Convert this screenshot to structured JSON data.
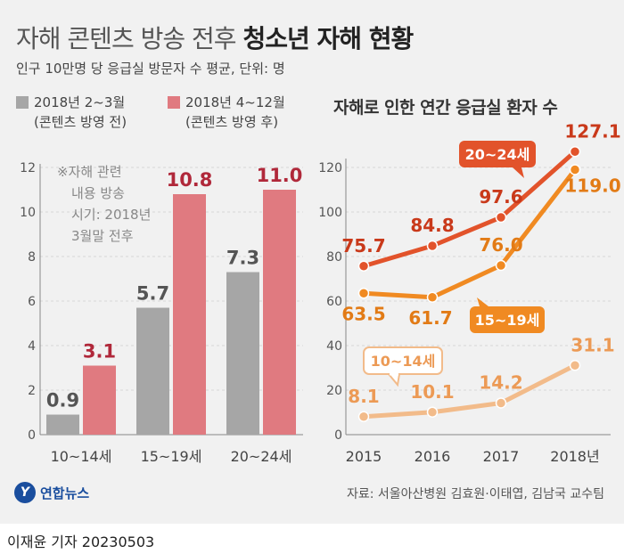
{
  "title": {
    "light": "자해 콘텐츠 방송 전후",
    "bold": "청소년 자해 현황"
  },
  "subtitle": "인구 10만명 당 응급실 방문자 수 평균, 단위: 명",
  "legend": [
    {
      "line1": "2018년 2~3월",
      "line2": "(콘텐츠 방영 전)",
      "color": "#a6a6a6"
    },
    {
      "line1": "2018년 4~12월",
      "line2": "(콘텐츠 방영 후)",
      "color": "#e07a80"
    }
  ],
  "note": [
    "※자해 관련",
    "내용 방송",
    "시기: 2018년",
    "3월말 전후"
  ],
  "right_title": "자해로 인한 연간 응급실 환자 수",
  "chart_data": [
    {
      "type": "bar",
      "categories": [
        "10~14세",
        "15~19세",
        "20~24세"
      ],
      "series": [
        {
          "name": "2018년 2~3월 (콘텐츠 방영 전)",
          "values": [
            0.9,
            5.7,
            7.3
          ],
          "color": "#a6a6a6",
          "label_color": "#555555"
        },
        {
          "name": "2018년 4~12월 (콘텐츠 방영 후)",
          "values": [
            3.1,
            10.8,
            11.0
          ],
          "color": "#e07a80",
          "label_color": "#b0283a"
        }
      ],
      "ylim": [
        0,
        12
      ],
      "yticks": [
        0,
        2,
        4,
        6,
        8,
        10,
        12
      ],
      "yticklabels": [
        "0",
        "2",
        "4",
        "6",
        "8",
        "10",
        "12"
      ],
      "value_labels": [
        [
          "0.9",
          "5.7",
          "7.3"
        ],
        [
          "3.1",
          "10.8",
          "11.0"
        ]
      ]
    },
    {
      "type": "line",
      "x": [
        "2015",
        "2016",
        "2017",
        "2018년"
      ],
      "series": [
        {
          "name": "20~24세",
          "values": [
            75.7,
            84.8,
            97.6,
            127.1
          ],
          "labels": [
            "75.7",
            "84.8",
            "97.6",
            "127.1"
          ],
          "color": "#e2532b",
          "label_color": "#c9391a"
        },
        {
          "name": "15~19세",
          "values": [
            63.5,
            61.7,
            76.0,
            119.0
          ],
          "labels": [
            "63.5",
            "61.7",
            "76.0",
            "119.0"
          ],
          "color": "#f08a22",
          "label_color": "#e27b16"
        },
        {
          "name": "10~14세",
          "values": [
            8.1,
            10.1,
            14.2,
            31.1
          ],
          "labels": [
            "8.1",
            "10.1",
            "14.2",
            "31.1"
          ],
          "color": "#f2bb8a",
          "label_color": "#ec9a55"
        }
      ],
      "ylim": [
        0,
        130
      ],
      "yticks": [
        0,
        20,
        40,
        60,
        80,
        100,
        120
      ],
      "yticklabels": [
        "0",
        "20",
        "40",
        "60",
        "80",
        "100",
        "120"
      ]
    }
  ],
  "footer": {
    "logo_mark": "Y",
    "logo_text": "연합뉴스",
    "source": "자료: 서울아산병원 김효원·이태엽, 김남국 교수팀"
  },
  "byline": "이재윤 기자  20230503"
}
